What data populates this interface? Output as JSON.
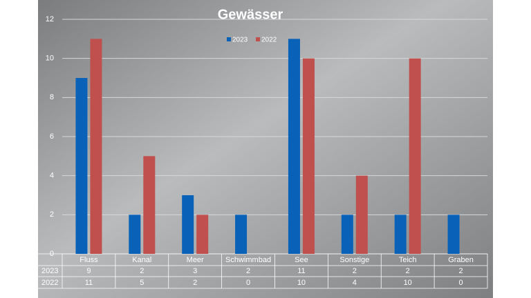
{
  "chart_data": {
    "type": "bar",
    "title": "Gewässer",
    "categories": [
      "Fluss",
      "Kanal",
      "Meer",
      "Schwimmbad",
      "See",
      "Sonstige",
      "Teich",
      "Graben"
    ],
    "series": [
      {
        "name": "2023",
        "color": "#0a62b8",
        "values": [
          9,
          2,
          3,
          2,
          11,
          2,
          2,
          2
        ]
      },
      {
        "name": "2022",
        "color": "#c0504d",
        "values": [
          11,
          5,
          2,
          0,
          10,
          4,
          10,
          0
        ]
      }
    ],
    "ylim": [
      0,
      12
    ],
    "yticks": [
      0,
      2,
      4,
      6,
      8,
      10,
      12
    ],
    "grid": true,
    "legend": "top"
  }
}
